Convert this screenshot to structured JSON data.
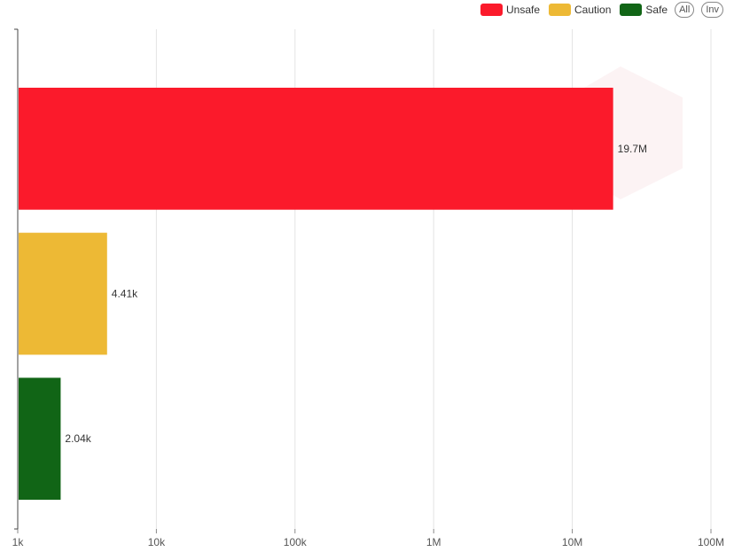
{
  "legend": {
    "items": [
      {
        "label": "Unsafe",
        "color": "#fb1a2b"
      },
      {
        "label": "Caution",
        "color": "#edb935"
      },
      {
        "label": "Safe",
        "color": "#116516"
      }
    ],
    "all_label": "All",
    "inv_label": "Inv"
  },
  "chart_data": {
    "type": "bar",
    "orientation": "horizontal",
    "x_scale": "log",
    "xlim": [
      1000,
      100000000
    ],
    "x_ticks": [
      1000,
      10000,
      100000,
      1000000,
      10000000,
      100000000
    ],
    "x_tick_labels": [
      "1k",
      "10k",
      "100k",
      "1M",
      "10M",
      "100M"
    ],
    "grid": true,
    "legend_position": "top-right",
    "categories": [
      "Unsafe",
      "Caution",
      "Safe"
    ],
    "values": [
      19700000,
      4410,
      2040
    ],
    "data_labels": [
      "19.7M",
      "4.41k",
      "2.04k"
    ],
    "colors": [
      "#fb1a2b",
      "#edb935",
      "#116516"
    ]
  }
}
